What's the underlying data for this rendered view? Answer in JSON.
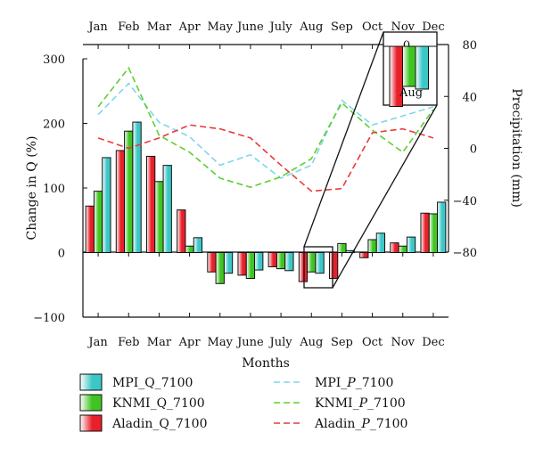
{
  "chart_data": {
    "type": "bar",
    "categories": [
      "Jan",
      "Feb",
      "Mar",
      "Apr",
      "May",
      "June",
      "July",
      "Aug",
      "Sep",
      "Oct",
      "Nov",
      "Dec"
    ],
    "xlabel": "Months",
    "ylabel": "Change in Q (%)",
    "y2label": "Precipitation (mm)",
    "ylim": [
      -100,
      300
    ],
    "y2lim": [
      -80,
      80
    ],
    "yticks": [
      -100,
      0,
      100,
      200,
      300
    ],
    "y2ticks": [
      -80,
      -40,
      0,
      40,
      80
    ],
    "grid": false,
    "legend": "bottom",
    "bar_series": [
      {
        "name": "Aladin_Q_7100",
        "color": "#e8202a",
        "values": [
          72,
          158,
          149,
          66,
          -30,
          -35,
          -22,
          -45,
          -40,
          -8,
          15,
          61
        ]
      },
      {
        "name": "KNMI_Q_7100",
        "color": "#3fc422",
        "values": [
          95,
          188,
          110,
          10,
          -48,
          -40,
          -25,
          -30,
          14,
          20,
          10,
          60
        ]
      },
      {
        "name": "MPI_Q_7100",
        "color": "#3cc7c7",
        "values": [
          147,
          202,
          135,
          23,
          -32,
          -27,
          -28,
          -32,
          3,
          30,
          24,
          78
        ]
      }
    ],
    "line_series": [
      {
        "name": "MPI_P_7100",
        "color": "#7fd6ea",
        "values": [
          26,
          50,
          20,
          9,
          -13,
          -5,
          -23,
          -13,
          37,
          18,
          25,
          32
        ]
      },
      {
        "name": "KNMI_P_7100",
        "color": "#5fcf2f",
        "values": [
          32,
          62,
          10,
          -3,
          -23,
          -30,
          -22,
          -8,
          35,
          14,
          -3,
          30
        ]
      },
      {
        "name": "Aladin_P_7100",
        "color": "#e83a3a",
        "values": [
          8,
          0,
          8,
          18,
          15,
          8,
          -13,
          -33,
          -31,
          12,
          15,
          8
        ]
      }
    ],
    "inset": {
      "category": "Aug",
      "label": "Aug",
      "zero_label": "0"
    }
  },
  "legend": {
    "bars": [
      {
        "name": "MPI_Q_7100",
        "color": "#3cc7c7"
      },
      {
        "name": "KNMI_Q_7100",
        "color": "#3fc422"
      },
      {
        "name": "Aladin_Q_7100",
        "color": "#e8202a"
      }
    ],
    "lines": [
      {
        "prefix": "MPI_",
        "italic": "P",
        "suffix": "_7100",
        "color": "#7fd6ea"
      },
      {
        "prefix": "KNMI_",
        "italic": "P",
        "suffix": "_7100",
        "color": "#5fcf2f"
      },
      {
        "prefix": "Aladin_",
        "italic": "P",
        "suffix": "_7100",
        "color": "#e83a3a"
      }
    ]
  }
}
